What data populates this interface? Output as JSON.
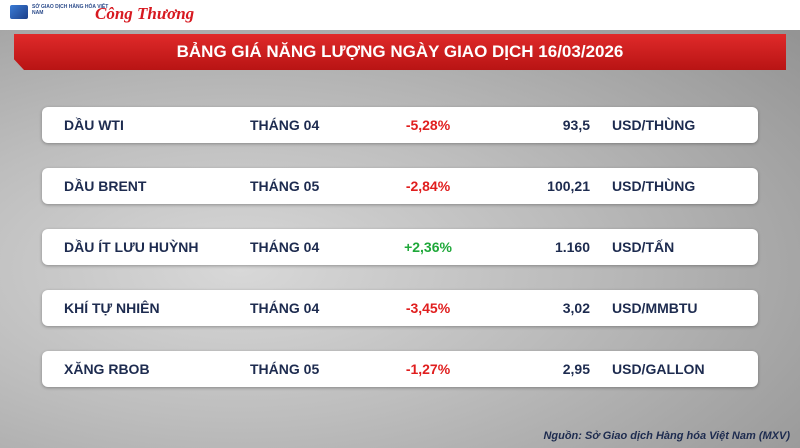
{
  "header": {
    "exchange_logo": "SỞ GIAO DỊCH HÀNG HÓA VIỆT NAM",
    "brand_logo": "Công Thương"
  },
  "title": "BẢNG GIÁ NĂNG LƯỢNG NGÀY GIAO DỊCH 16/03/2026",
  "table": {
    "rows": [
      [
        "DẦU WTI",
        "THÁNG 04",
        "-5,28%",
        "93,5",
        "USD/THÙNG"
      ],
      [
        "DẦU BRENT",
        "THÁNG 05",
        "-2,84%",
        "100,21",
        "USD/THÙNG"
      ],
      [
        "DẦU ÍT LƯU HUỲNH",
        "THÁNG 04",
        "+2,36%",
        "1.160",
        "USD/TẤN"
      ],
      [
        "KHÍ TỰ NHIÊN",
        "THÁNG 04",
        "-3,45%",
        "3,02",
        "USD/MMBTU"
      ],
      [
        "XĂNG RBOB",
        "THÁNG 05",
        "-1,27%",
        "2,95",
        "USD/GALLON"
      ]
    ]
  },
  "source": "Nguồn: Sở Giao dịch Hàng hóa Việt Nam (MXV)"
}
